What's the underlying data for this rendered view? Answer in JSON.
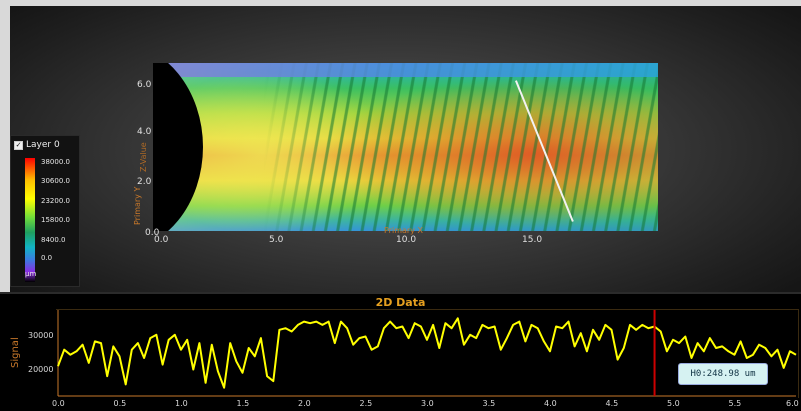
{
  "legend": {
    "layer_label": "Layer 0",
    "checkbox_mark": "✓",
    "ticks": [
      "38000.0",
      "30600.0",
      "23200.0",
      "15800.0",
      "8400.0",
      "0.0"
    ],
    "unit": "µm"
  },
  "map": {
    "y_axis_title": "Primary Y",
    "z_axis_title": "Z-Value",
    "x_axis_title": "Primary X",
    "y_ticks": [
      "6.0",
      "4.0",
      "2.0",
      "0.0"
    ],
    "x_ticks": [
      "0.0",
      "5.0",
      "10.0",
      "15.0"
    ]
  },
  "data2d": {
    "title": "2D Data",
    "y_axis_title": "Signal",
    "marker_readout": "H0:248.98 um"
  },
  "colors": {
    "signal_line": "#ffff00",
    "marker_line": "#cc0000",
    "title_orange": "#e6a020",
    "axis_orange": "#c8782a"
  },
  "chart_data": {
    "type": "line",
    "title": "2D Data",
    "xlabel": "",
    "ylabel": "Signal",
    "xlim": [
      0.0,
      6.0
    ],
    "ylim": [
      12000,
      38000
    ],
    "x_ticks": [
      "0.0",
      "0.5",
      "1.0",
      "1.5",
      "2.0",
      "2.5",
      "3.0",
      "3.5",
      "4.0",
      "4.5",
      "5.0",
      "5.5",
      "6.0"
    ],
    "y_ticks": [
      "20000",
      "30000"
    ],
    "marker_x": 4.85,
    "series": [
      {
        "x": [
          0.0,
          0.05,
          0.1,
          0.15,
          0.2,
          0.25,
          0.3,
          0.35,
          0.4,
          0.45,
          0.5,
          0.55,
          0.6,
          0.65,
          0.7,
          0.75,
          0.8,
          0.85,
          0.9,
          0.95,
          1.0,
          1.05,
          1.1,
          1.15,
          1.2,
          1.25,
          1.3,
          1.35,
          1.4,
          1.45,
          1.5,
          1.55,
          1.6,
          1.65,
          1.7,
          1.75,
          1.8,
          1.85,
          1.9,
          1.95,
          2.0,
          2.05,
          2.1,
          2.15,
          2.2,
          2.25,
          2.3,
          2.35,
          2.4,
          2.45,
          2.5,
          2.55,
          2.6,
          2.65,
          2.7,
          2.75,
          2.8,
          2.85,
          2.9,
          2.95,
          3.0,
          3.05,
          3.1,
          3.15,
          3.2,
          3.25,
          3.3,
          3.35,
          3.4,
          3.45,
          3.5,
          3.55,
          3.6,
          3.65,
          3.7,
          3.75,
          3.8,
          3.85,
          3.9,
          3.95,
          4.0,
          4.05,
          4.1,
          4.15,
          4.2,
          4.25,
          4.3,
          4.35,
          4.4,
          4.45,
          4.5,
          4.55,
          4.6,
          4.65,
          4.7,
          4.75,
          4.8,
          4.85,
          4.9,
          4.95,
          5.0,
          5.05,
          5.1,
          5.15,
          5.2,
          5.25,
          5.3,
          5.35,
          5.4,
          5.45,
          5.5,
          5.55,
          5.6,
          5.65,
          5.7,
          5.75,
          5.8,
          5.85,
          5.9,
          5.95,
          6.0
        ],
        "values": [
          21000,
          26000,
          24500,
          25500,
          27500,
          22000,
          28500,
          28000,
          18000,
          27000,
          24000,
          15500,
          26000,
          28000,
          23500,
          29500,
          30500,
          21500,
          29000,
          30500,
          26000,
          29000,
          20000,
          28000,
          16000,
          27500,
          19500,
          14500,
          28000,
          22500,
          19000,
          26500,
          24000,
          29500,
          18000,
          16500,
          32000,
          32500,
          31500,
          33500,
          34500,
          34000,
          34500,
          33500,
          34500,
          28000,
          34500,
          32500,
          27500,
          29500,
          30000,
          26000,
          27000,
          32500,
          34500,
          32500,
          33000,
          29500,
          34000,
          33000,
          29000,
          33500,
          26500,
          34000,
          32500,
          35500,
          27500,
          30500,
          29500,
          33500,
          32500,
          33000,
          26000,
          29500,
          33500,
          34500,
          28500,
          33500,
          32500,
          28500,
          25500,
          33000,
          32500,
          34500,
          27000,
          31000,
          25500,
          32000,
          29000,
          33500,
          32000,
          23000,
          26500,
          33500,
          32000,
          33500,
          32500,
          33000,
          31500,
          25500,
          29000,
          28000,
          30000,
          23500,
          28000,
          25500,
          29500,
          26500,
          27000,
          25500,
          24500,
          28500,
          23500,
          24500,
          27500,
          26500,
          24000,
          26000,
          20500,
          25500,
          24500
        ]
      }
    ]
  }
}
